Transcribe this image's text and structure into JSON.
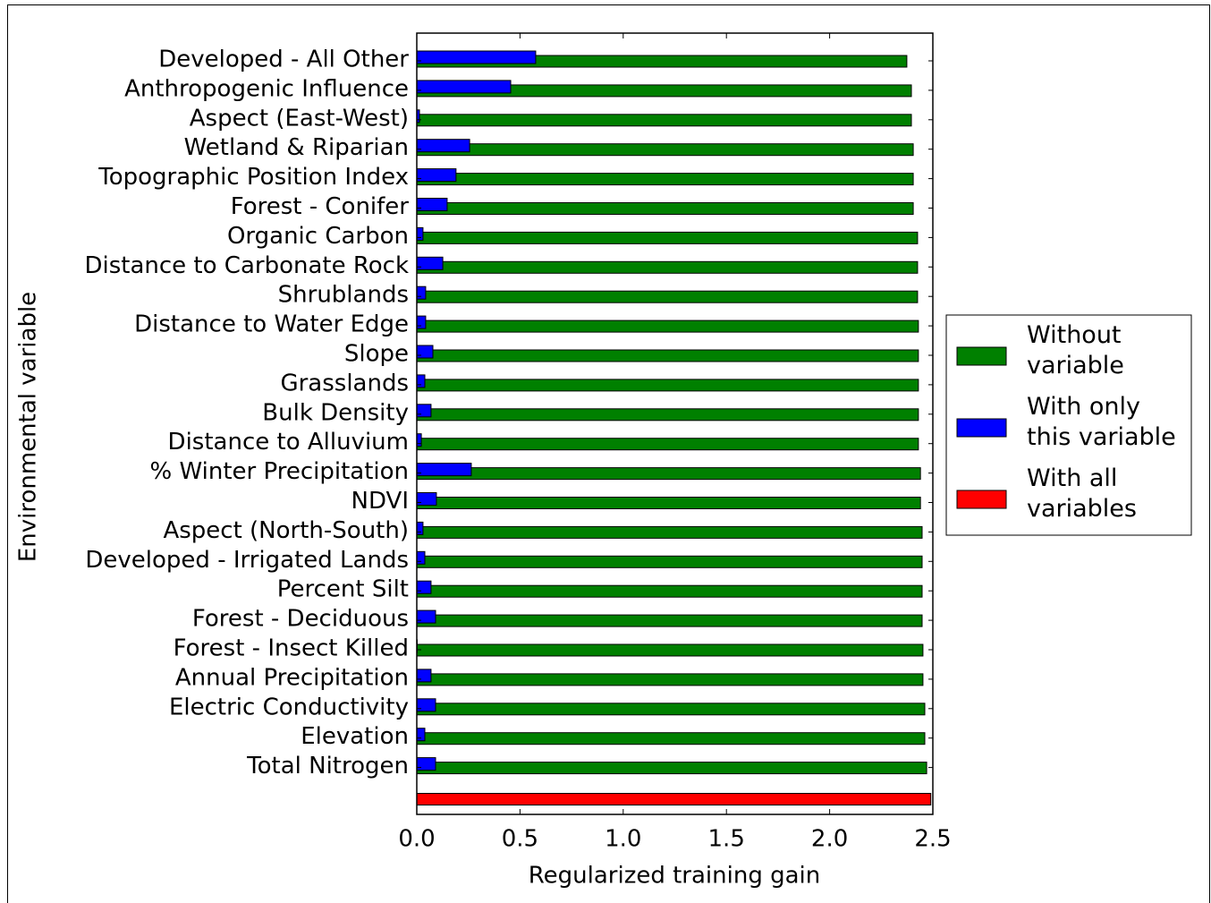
{
  "chart_data": {
    "type": "barh",
    "xlabel": "Regularized training gain",
    "ylabel": "Environmental variable",
    "categories": [
      "Developed - All Other",
      "Anthropogenic Influence",
      "Aspect (East-West)",
      "Wetland & Riparian",
      "Topographic Position Index",
      "Forest - Conifer",
      "Organic Carbon",
      "Distance to Carbonate Rock",
      "Shrublands",
      "Distance to Water Edge",
      "Slope",
      "Grasslands",
      "Bulk Density",
      "Distance to Alluvium",
      "% Winter Precipitation",
      "NDVI",
      "Aspect (North-South)",
      "Developed - Irrigated Lands",
      "Percent Silt",
      "Forest - Deciduous",
      "Forest - Insect Killed",
      "Annual Precipitation",
      "Electric Conductivity",
      "Elevation",
      "Total Nitrogen",
      null
    ],
    "series": [
      {
        "name": "Without variable",
        "color": "#008000",
        "values": [
          2.374,
          2.396,
          2.396,
          2.405,
          2.405,
          2.405,
          2.426,
          2.426,
          2.426,
          2.43,
          2.43,
          2.43,
          2.43,
          2.43,
          2.44,
          2.44,
          2.448,
          2.448,
          2.448,
          2.448,
          2.452,
          2.452,
          2.461,
          2.461,
          2.47,
          null
        ]
      },
      {
        "name": "With only this variable",
        "color": "#0000ff",
        "values": [
          0.576,
          0.455,
          0.013,
          0.256,
          0.19,
          0.147,
          0.03,
          0.126,
          0.043,
          0.043,
          0.078,
          0.039,
          0.069,
          0.022,
          0.264,
          0.095,
          0.03,
          0.039,
          0.069,
          0.091,
          0.002,
          0.069,
          0.091,
          0.039,
          0.091,
          null
        ]
      },
      {
        "name": "With all variables",
        "color": "#ff0000",
        "values": [
          null,
          null,
          null,
          null,
          null,
          null,
          null,
          null,
          null,
          null,
          null,
          null,
          null,
          null,
          null,
          null,
          null,
          null,
          null,
          null,
          null,
          null,
          null,
          null,
          null,
          2.49
        ]
      }
    ],
    "xlim": [
      0,
      2.5
    ],
    "xticks": [
      {
        "value": 0,
        "label": "0.0"
      },
      0.5,
      {
        "value": 1,
        "label": "1.0"
      },
      1.5,
      {
        "value": 2,
        "label": "2.0"
      },
      2.5
    ],
    "legend": "right"
  }
}
